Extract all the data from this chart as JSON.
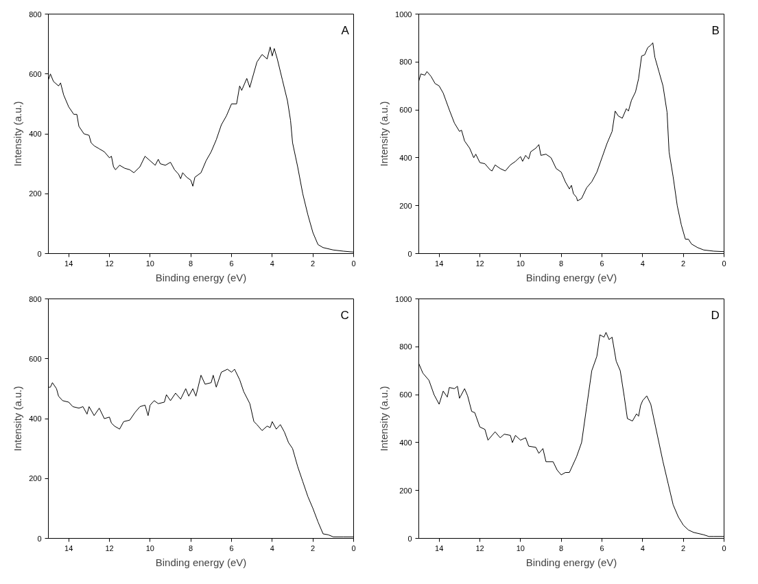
{
  "chart_data": [
    {
      "type": "line",
      "annotations": [
        "A"
      ],
      "xlabel": "Binding energy (eV)",
      "ylabel": "Intensity (a.u.)",
      "xlim": [
        15,
        0
      ],
      "xticks": [
        14,
        12,
        10,
        8,
        6,
        4,
        2,
        0
      ],
      "ylim": [
        0,
        800
      ],
      "yticks": [
        0,
        200,
        400,
        600,
        800
      ],
      "grid": false,
      "color": "#000000",
      "x": [
        15,
        14.9,
        14.75,
        14.5,
        14.4,
        14.25,
        14,
        13.75,
        13.6,
        13.5,
        13.25,
        13,
        12.9,
        12.75,
        12.5,
        12.25,
        12,
        11.9,
        11.8,
        11.7,
        11.5,
        11.25,
        11,
        10.8,
        10.5,
        10.25,
        10,
        9.75,
        9.6,
        9.5,
        9.25,
        9,
        8.8,
        8.6,
        8.5,
        8.4,
        8.2,
        8,
        7.9,
        7.8,
        7.5,
        7.25,
        7,
        6.75,
        6.5,
        6.25,
        6,
        5.75,
        5.6,
        5.5,
        5.25,
        5.1,
        5,
        4.75,
        4.5,
        4.25,
        4.1,
        4,
        3.9,
        3.75,
        3.5,
        3.25,
        3.1,
        3,
        2.75,
        2.5,
        2.25,
        2,
        1.75,
        1.5,
        1,
        0.5,
        0
      ],
      "values": [
        580,
        600,
        575,
        560,
        570,
        530,
        490,
        465,
        465,
        425,
        400,
        395,
        370,
        360,
        350,
        340,
        320,
        325,
        290,
        280,
        295,
        285,
        280,
        270,
        290,
        325,
        310,
        295,
        315,
        300,
        295,
        305,
        280,
        265,
        250,
        270,
        255,
        245,
        225,
        255,
        270,
        310,
        340,
        380,
        430,
        460,
        500,
        500,
        560,
        545,
        585,
        555,
        580,
        640,
        665,
        650,
        690,
        660,
        685,
        650,
        580,
        510,
        445,
        370,
        290,
        200,
        130,
        70,
        30,
        20,
        12,
        8,
        5
      ]
    },
    {
      "type": "line",
      "annotations": [
        "B"
      ],
      "xlabel": "Binding energy (eV)",
      "ylabel": "Intensity (a.u.)",
      "xlim": [
        15,
        0
      ],
      "xticks": [
        14,
        12,
        10,
        8,
        6,
        4,
        2,
        0
      ],
      "ylim": [
        0,
        1000
      ],
      "yticks": [
        0,
        200,
        400,
        600,
        800,
        1000
      ],
      "grid": false,
      "color": "#000000",
      "x": [
        15,
        14.9,
        14.7,
        14.6,
        14.4,
        14.2,
        14,
        13.8,
        13.5,
        13.25,
        13,
        12.9,
        12.75,
        12.5,
        12.3,
        12.2,
        12,
        11.75,
        11.5,
        11.4,
        11.25,
        11,
        10.75,
        10.5,
        10.25,
        10,
        9.9,
        9.75,
        9.6,
        9.5,
        9.25,
        9.1,
        9,
        8.75,
        8.5,
        8.25,
        8,
        7.8,
        7.6,
        7.5,
        7.4,
        7.25,
        7.2,
        7,
        6.75,
        6.5,
        6.25,
        6,
        5.75,
        5.5,
        5.35,
        5.2,
        5,
        4.8,
        4.7,
        4.55,
        4.35,
        4.2,
        4.05,
        3.9,
        3.75,
        3.6,
        3.5,
        3.4,
        3.2,
        3,
        2.8,
        2.7,
        2.5,
        2.3,
        2.1,
        1.9,
        1.75,
        1.6,
        1.3,
        1,
        0.5,
        0
      ],
      "values": [
        720,
        750,
        745,
        760,
        740,
        710,
        700,
        670,
        600,
        545,
        510,
        515,
        470,
        440,
        400,
        415,
        380,
        375,
        350,
        345,
        370,
        355,
        345,
        370,
        385,
        405,
        385,
        410,
        395,
        425,
        440,
        455,
        410,
        415,
        400,
        355,
        340,
        300,
        270,
        285,
        250,
        235,
        220,
        230,
        275,
        300,
        340,
        400,
        460,
        510,
        595,
        575,
        565,
        605,
        595,
        640,
        675,
        730,
        825,
        830,
        860,
        870,
        880,
        820,
        760,
        700,
        590,
        424,
        320,
        200,
        120,
        60,
        60,
        40,
        25,
        15,
        10,
        8
      ]
    },
    {
      "type": "line",
      "annotations": [
        "C"
      ],
      "xlabel": "Binding energy (eV)",
      "ylabel": "Intensity (a.u.)",
      "xlim": [
        15,
        0
      ],
      "xticks": [
        14,
        12,
        10,
        8,
        6,
        4,
        2,
        0
      ],
      "ylim": [
        0,
        800
      ],
      "yticks": [
        0,
        200,
        400,
        600,
        800
      ],
      "grid": false,
      "color": "#000000",
      "x": [
        15,
        14.9,
        14.8,
        14.6,
        14.5,
        14.3,
        14,
        13.8,
        13.5,
        13.3,
        13.1,
        13,
        12.75,
        12.5,
        12.25,
        12,
        11.9,
        11.75,
        11.5,
        11.3,
        11,
        10.75,
        10.5,
        10.25,
        10.1,
        10,
        9.8,
        9.6,
        9.3,
        9.2,
        9,
        8.75,
        8.5,
        8.25,
        8.1,
        7.9,
        7.75,
        7.5,
        7.3,
        7,
        6.9,
        6.75,
        6.5,
        6.2,
        6,
        5.85,
        5.6,
        5.4,
        5.1,
        4.9,
        4.75,
        4.5,
        4.25,
        4.1,
        4,
        3.8,
        3.6,
        3.4,
        3.2,
        3,
        2.75,
        2.5,
        2.25,
        2,
        1.75,
        1.5,
        1.25,
        1,
        0.5,
        0
      ],
      "values": [
        505,
        505,
        520,
        500,
        475,
        460,
        455,
        440,
        435,
        440,
        415,
        440,
        410,
        435,
        400,
        405,
        385,
        375,
        365,
        390,
        395,
        420,
        440,
        445,
        410,
        445,
        460,
        450,
        455,
        480,
        460,
        485,
        465,
        500,
        475,
        500,
        475,
        545,
        515,
        520,
        545,
        505,
        555,
        565,
        555,
        565,
        530,
        490,
        450,
        390,
        380,
        360,
        375,
        370,
        390,
        365,
        380,
        355,
        320,
        300,
        240,
        190,
        140,
        100,
        55,
        15,
        12,
        5,
        5,
        5
      ]
    },
    {
      "type": "line",
      "annotations": [
        "D"
      ],
      "xlabel": "Binding energy (eV)",
      "ylabel": "Intensity (a.u.)",
      "xlim": [
        15,
        0
      ],
      "xticks": [
        14,
        12,
        10,
        8,
        6,
        4,
        2,
        0
      ],
      "ylim": [
        0,
        1000
      ],
      "yticks": [
        0,
        200,
        400,
        600,
        800,
        1000
      ],
      "grid": false,
      "color": "#000000",
      "x": [
        15,
        14.8,
        14.5,
        14.25,
        14,
        13.8,
        13.6,
        13.5,
        13.25,
        13.1,
        13,
        12.75,
        12.6,
        12.4,
        12.25,
        12,
        11.75,
        11.6,
        11.25,
        11,
        10.8,
        10.5,
        10.4,
        10.25,
        10,
        9.75,
        9.6,
        9.25,
        9.1,
        8.9,
        8.75,
        8.4,
        8.2,
        8,
        7.8,
        7.6,
        7.25,
        7,
        6.75,
        6.5,
        6.25,
        6.1,
        5.9,
        5.8,
        5.65,
        5.5,
        5.3,
        5.1,
        4.9,
        4.75,
        4.5,
        4.3,
        4.2,
        4.1,
        4,
        3.8,
        3.6,
        3.4,
        3.2,
        3,
        2.75,
        2.5,
        2.25,
        2,
        1.75,
        1.5,
        1,
        0.75,
        0.5,
        0
      ],
      "values": [
        730,
        690,
        660,
        600,
        560,
        615,
        590,
        630,
        625,
        635,
        585,
        625,
        595,
        530,
        525,
        465,
        455,
        410,
        445,
        420,
        435,
        430,
        400,
        430,
        410,
        420,
        385,
        380,
        355,
        375,
        320,
        320,
        285,
        265,
        275,
        275,
        340,
        400,
        550,
        700,
        760,
        850,
        840,
        860,
        830,
        840,
        740,
        700,
        590,
        500,
        490,
        520,
        510,
        555,
        575,
        595,
        560,
        480,
        400,
        320,
        230,
        140,
        90,
        55,
        35,
        25,
        15,
        8,
        8,
        8
      ]
    }
  ]
}
